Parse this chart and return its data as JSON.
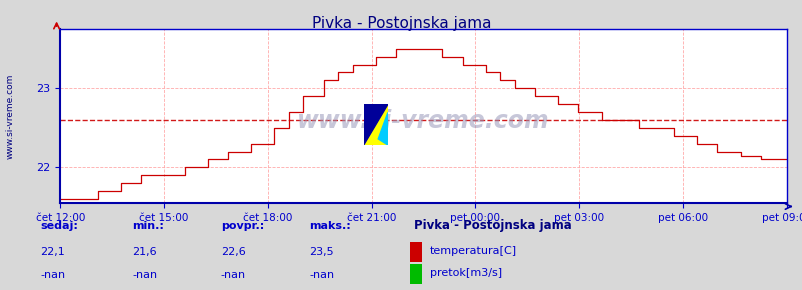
{
  "title": "Pivka - Postojnska jama",
  "title_color": "#000080",
  "bg_color": "#d8d8d8",
  "plot_bg_color": "#ffffff",
  "grid_color": "#ffaaaa",
  "axis_color": "#0000cc",
  "line_color": "#cc0000",
  "avg_line_color": "#cc0000",
  "x_labels": [
    "čet 12:00",
    "čet 15:00",
    "čet 18:00",
    "čet 21:00",
    "pet 00:00",
    "pet 03:00",
    "pet 06:00",
    "pet 09:00"
  ],
  "y_ticks": [
    22,
    23
  ],
  "ylim_min": 21.55,
  "ylim_max": 23.75,
  "avg_value": 22.6,
  "legend_title": "Pivka - Postojnska jama",
  "legend_title_color": "#000080",
  "stats_labels": [
    "sedaj:",
    "min.:",
    "povpr.:",
    "maks.:"
  ],
  "stats_temp": [
    "22,1",
    "21,6",
    "22,6",
    "23,5"
  ],
  "stats_flow": [
    "-nan",
    "-nan",
    "-nan",
    "-nan"
  ],
  "temp_label": "temperatura[C]",
  "flow_label": "pretok[m3/s]",
  "watermark": "www.si-vreme.com",
  "watermark_color": "#aaaacc",
  "ylabel_text": "www.si-vreme.com",
  "ylabel_color": "#000080"
}
